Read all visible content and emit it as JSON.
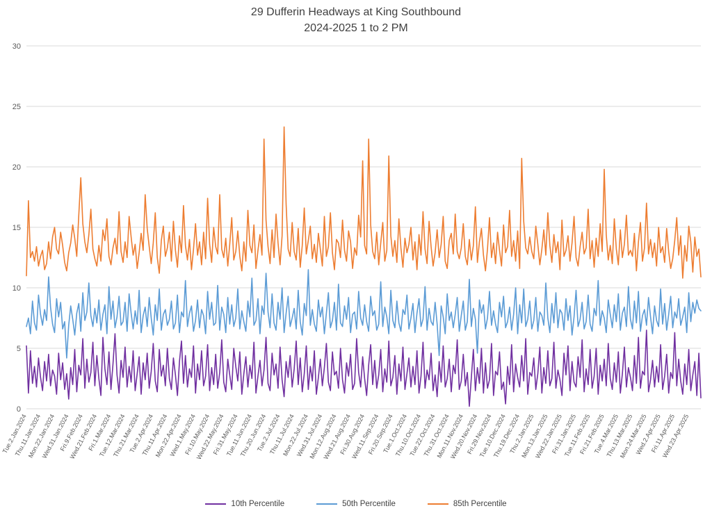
{
  "title": {
    "line1": "29 Dufferin Headways at King Southbound",
    "line2": "2024-2025 1 to 2 PM"
  },
  "chart_data": {
    "type": "line",
    "title": "29 Dufferin Headways at King Southbound 2024-2025 1 to 2 PM",
    "xlabel": "",
    "ylabel": "",
    "ylim": [
      0,
      30
    ],
    "y_ticks": [
      0,
      5,
      10,
      15,
      20,
      25,
      30
    ],
    "grid": true,
    "legend_position": "bottom",
    "x_tick_every": 7,
    "x_tick_labels": [
      "Tue.2.Jan.2024",
      "Thu.11.Jan.2024",
      "Mon.22.Jan.2024",
      "Wed.31.Jan.2024",
      "Fri.9.Feb.2024",
      "Wed.21.Feb.2024",
      "Fri.1.Mar.2024",
      "Tue.12.Mar.2024",
      "Thu.21.Mar.2024",
      "Tue.2.Apr.2024",
      "Thu.11.Apr.2024",
      "Mon.22.Apr.2024",
      "Wed.1.May.2024",
      "Fri.10.May.2024",
      "Wed.22.May.2024",
      "Fri.31.May.2024",
      "Tue.11.Jun.2024",
      "Thu.20.Jun.2024",
      "Tue.2.Jul.2024",
      "Thu.11.Jul.2024",
      "Mon.22.Jul.2024",
      "Wed.31.Jul.2024",
      "Mon.12.Aug.2024",
      "Wed.21.Aug.2024",
      "Fri.30.Aug.2024",
      "Wed.11.Sep.2024",
      "Fri.20.Sep.2024",
      "Tue.1.Oct.2024",
      "Thu.10.Oct.2024",
      "Tue.22.Oct.2024",
      "Thu.31.Oct.2024",
      "Mon.11.Nov.2024",
      "Wed.20.Nov.2024",
      "Fri.29.Nov.2024",
      "Tue.10.Dec.2024",
      "Thu.19.Dec.2024",
      "Thu.2.Jan.2025",
      "Mon.13.Jan.2025",
      "Wed.22.Jan.2025",
      "Fri.31.Jan.2025",
      "Tue.11.Feb.2025",
      "Fri.21.Feb.2025",
      "Tue.4.Mar.2025",
      "Thu.13.Mar.2025",
      "Mon.24.Mar.2025",
      "Wed.2.Apr.2025",
      "Fri.11.Apr.2025",
      "Wed.23.Apr.2025"
    ],
    "series": [
      {
        "name": "10th Percentile",
        "color": "#7030A0",
        "values": [
          5.2,
          1.3,
          4.8,
          2.1,
          3.5,
          1.8,
          4.2,
          2.6,
          1.5,
          3.9,
          2.3,
          4.5,
          1.9,
          3.2,
          2.7,
          1.2,
          4.6,
          2.4,
          3.8,
          1.6,
          2.9,
          0.8,
          3.4,
          2.0,
          4.9,
          1.4,
          3.6,
          2.8,
          5.8,
          1.7,
          4.1,
          2.2,
          3.0,
          5.5,
          1.9,
          4.4,
          2.5,
          1.1,
          5.9,
          3.3,
          2.0,
          4.7,
          1.6,
          3.7,
          6.2,
          2.8,
          1.3,
          4.0,
          2.6,
          5.1,
          1.8,
          3.5,
          2.2,
          4.8,
          1.5,
          2.9,
          4.3,
          1.2,
          3.8,
          2.4,
          4.6,
          1.7,
          3.1,
          5.4,
          2.3,
          1.4,
          4.9,
          2.7,
          3.6,
          1.9,
          5.0,
          2.5,
          1.6,
          4.2,
          2.8,
          1.1,
          3.9,
          5.6,
          2.1,
          4.4,
          1.8,
          3.3,
          2.6,
          5.2,
          1.3,
          3.7,
          2.4,
          4.8,
          1.9,
          2.7,
          5.3,
          1.5,
          3.4,
          2.0,
          4.5,
          1.7,
          3.0,
          5.7,
          2.2,
          1.4,
          4.1,
          2.8,
          1.6,
          5.0,
          3.5,
          2.3,
          4.7,
          1.2,
          2.9,
          4.3,
          1.8,
          3.6,
          2.5,
          5.5,
          1.3,
          2.7,
          4.0,
          1.9,
          3.2,
          5.9,
          2.1,
          1.5,
          4.6,
          2.8,
          3.7,
          1.7,
          5.1,
          2.4,
          1.0,
          3.9,
          2.6,
          4.4,
          1.8,
          3.3,
          5.6,
          2.0,
          4.2,
          1.4,
          2.9,
          5.2,
          1.6,
          3.5,
          2.3,
          4.8,
          1.2,
          2.6,
          4.1,
          1.9,
          3.4,
          5.4,
          2.2,
          1.5,
          4.7,
          2.8,
          3.1,
          1.7,
          5.0,
          2.4,
          1.3,
          3.8,
          2.7,
          4.5,
          1.6,
          2.1,
          5.8,
          3.0,
          1.8,
          4.3,
          2.5,
          1.1,
          3.6,
          5.3,
          2.0,
          4.0,
          1.7,
          2.8,
          4.9,
          1.4,
          3.3,
          2.2,
          5.6,
          1.9,
          2.6,
          4.4,
          1.2,
          3.7,
          2.3,
          5.1,
          1.6,
          2.9,
          4.2,
          1.8,
          3.5,
          2.0,
          4.8,
          1.3,
          2.7,
          5.5,
          1.7,
          3.2,
          2.4,
          4.6,
          1.5,
          2.8,
          1.0,
          3.9,
          2.2,
          5.2,
          1.8,
          2.5,
          4.1,
          1.4,
          3.6,
          2.9,
          5.7,
          1.6,
          2.3,
          4.5,
          1.9,
          3.0,
          0.2,
          2.6,
          4.9,
          1.5,
          3.4,
          2.1,
          5.0,
          1.3,
          3.8,
          1.7,
          2.4,
          5.4,
          1.1,
          3.1,
          2.8,
          4.7,
          1.6,
          2.2,
          0.4,
          3.5,
          2.0,
          5.3,
          1.4,
          3.7,
          2.6,
          1.8,
          4.4,
          2.3,
          5.8,
          1.2,
          3.0,
          2.7,
          4.2,
          1.6,
          2.9,
          5.1,
          1.3,
          3.4,
          2.1,
          4.8,
          1.9,
          2.5,
          5.5,
          1.7,
          3.2,
          2.4,
          1.1,
          4.6,
          2.8,
          5.2,
          1.5,
          3.9,
          2.2,
          1.8,
          4.3,
          2.6,
          5.7,
          1.4,
          3.3,
          2.0,
          4.9,
          1.7,
          2.7,
          5.0,
          1.2,
          3.6,
          2.3,
          4.1,
          1.9,
          5.4,
          2.5,
          1.6,
          3.8,
          2.2,
          4.7,
          1.3,
          2.9,
          5.1,
          1.8,
          3.4,
          2.6,
          1.5,
          4.4,
          2.1,
          5.9,
          1.7,
          3.1,
          2.8,
          6.5,
          1.4,
          2.4,
          4.0,
          1.8,
          3.5,
          2.2,
          5.3,
          1.6,
          2.7,
          4.5,
          1.3,
          3.0,
          2.5,
          6.3,
          1.9,
          4.1,
          2.3,
          1.2,
          3.7,
          2.0,
          4.9,
          1.5,
          2.8,
          3.9,
          1.1,
          4.6,
          0.9
        ]
      },
      {
        "name": "50th Percentile",
        "color": "#5B9BD5",
        "values": [
          6.8,
          7.5,
          6.2,
          8.9,
          7.1,
          6.5,
          9.4,
          7.8,
          6.9,
          8.2,
          7.3,
          10.9,
          8.4,
          7.0,
          6.3,
          9.1,
          7.6,
          8.8,
          6.6,
          7.2,
          4.2,
          6.9,
          8.5,
          7.4,
          6.1,
          7.9,
          8.7,
          6.4,
          9.6,
          7.3,
          8.0,
          10.4,
          7.7,
          6.8,
          8.3,
          7.1,
          9.0,
          6.5,
          7.8,
          8.6,
          6.2,
          10.1,
          7.4,
          8.9,
          6.7,
          7.6,
          9.3,
          6.9,
          7.2,
          8.8,
          6.4,
          9.5,
          7.9,
          6.6,
          8.1,
          7.0,
          9.8,
          6.3,
          7.7,
          8.4,
          6.8,
          9.2,
          7.5,
          6.1,
          8.6,
          7.3,
          9.9,
          6.5,
          7.8,
          8.2,
          6.9,
          7.4,
          8.9,
          6.6,
          7.1,
          9.4,
          6.3,
          8.0,
          7.6,
          10.6,
          6.8,
          7.9,
          8.5,
          6.4,
          7.3,
          9.0,
          6.7,
          8.2,
          7.7,
          6.2,
          9.7,
          7.4,
          8.8,
          6.9,
          7.1,
          10.2,
          6.5,
          8.4,
          7.8,
          6.3,
          9.2,
          7.0,
          8.6,
          6.8,
          7.5,
          9.9,
          6.6,
          8.1,
          7.2,
          6.4,
          8.9,
          7.6,
          10.8,
          6.9,
          7.3,
          9.1,
          6.2,
          8.5,
          7.8,
          11.2,
          8.0,
          6.7,
          9.5,
          7.1,
          6.5,
          8.8,
          7.4,
          10.0,
          6.3,
          7.9,
          9.3,
          6.8,
          7.5,
          8.3,
          6.6,
          9.8,
          7.2,
          6.1,
          8.7,
          7.7,
          11.5,
          6.9,
          8.2,
          7.0,
          6.4,
          9.0,
          7.6,
          8.4,
          6.2,
          7.9,
          9.6,
          6.7,
          7.3,
          8.8,
          6.5,
          10.3,
          7.1,
          6.8,
          8.5,
          7.4,
          9.2,
          6.3,
          7.8,
          8.0,
          6.6,
          9.7,
          7.5,
          6.9,
          8.6,
          7.2,
          6.4,
          9.3,
          7.7,
          8.1,
          6.5,
          7.0,
          10.5,
          6.8,
          8.4,
          7.6,
          6.2,
          9.8,
          7.3,
          6.7,
          8.9,
          7.1,
          6.4,
          8.2,
          7.8,
          9.4,
          6.6,
          7.5,
          8.7,
          6.3,
          7.9,
          9.1,
          6.8,
          7.4,
          10.1,
          6.5,
          8.3,
          7.2,
          6.9,
          8.8,
          7.0,
          4.4,
          8.5,
          7.6,
          6.2,
          9.5,
          7.3,
          8.0,
          6.7,
          7.8,
          9.2,
          6.4,
          7.7,
          8.9,
          6.5,
          7.2,
          10.7,
          6.8,
          8.3,
          7.4,
          4.6,
          9.0,
          7.9,
          8.6,
          6.6,
          7.5,
          9.7,
          6.9,
          8.1,
          7.0,
          6.3,
          8.8,
          7.6,
          9.3,
          6.7,
          7.2,
          8.4,
          6.5,
          7.8,
          10.0,
          6.2,
          8.6,
          7.1,
          9.9,
          6.8,
          7.4,
          8.9,
          6.6,
          7.3,
          9.2,
          6.4,
          8.0,
          7.7,
          6.9,
          10.4,
          7.5,
          6.3,
          8.7,
          7.1,
          9.6,
          6.7,
          8.2,
          7.9,
          6.5,
          9.1,
          7.3,
          8.5,
          6.1,
          7.6,
          9.8,
          6.8,
          7.4,
          8.8,
          6.6,
          7.2,
          9.4,
          7.0,
          6.4,
          8.3,
          7.7,
          10.6,
          6.9,
          8.1,
          7.5,
          6.3,
          9.0,
          7.8,
          6.7,
          8.6,
          7.2,
          9.5,
          6.5,
          7.9,
          8.4,
          6.8,
          10.1,
          7.4,
          6.6,
          8.9,
          7.1,
          9.7,
          6.4,
          7.7,
          8.2,
          6.9,
          9.2,
          7.6,
          6.2,
          8.5,
          7.3,
          6.8,
          9.9,
          7.0,
          8.7,
          6.5,
          7.8,
          9.3,
          6.7,
          8.0,
          7.5,
          9.1,
          6.9,
          7.6,
          8.4,
          6.3,
          9.6,
          7.2,
          8.8,
          7.9,
          9.0,
          8.3,
          8.1
        ]
      },
      {
        "name": "85th Percentile",
        "color": "#ED7D31",
        "values": [
          11.0,
          17.2,
          12.5,
          13.0,
          12.2,
          13.4,
          11.8,
          12.6,
          13.1,
          11.5,
          12.0,
          13.8,
          12.4,
          14.2,
          15.0,
          13.2,
          12.8,
          14.6,
          13.5,
          12.1,
          11.4,
          12.9,
          13.7,
          15.2,
          14.1,
          12.6,
          16.0,
          19.1,
          15.3,
          13.8,
          12.9,
          14.4,
          16.5,
          13.2,
          12.4,
          11.8,
          13.5,
          12.2,
          14.8,
          13.9,
          15.7,
          12.6,
          11.9,
          13.3,
          14.1,
          12.8,
          16.3,
          13.0,
          12.1,
          13.8,
          12.5,
          15.9,
          14.2,
          12.7,
          13.6,
          11.6,
          12.9,
          14.5,
          13.1,
          17.7,
          14.9,
          13.4,
          12.0,
          13.7,
          16.2,
          12.5,
          11.2,
          13.9,
          15.1,
          12.6,
          13.3,
          14.6,
          12.2,
          15.5,
          13.1,
          11.7,
          14.3,
          12.9,
          16.8,
          13.5,
          12.3,
          14.0,
          11.5,
          13.2,
          15.3,
          12.7,
          13.8,
          11.9,
          14.6,
          12.4,
          17.4,
          13.6,
          12.1,
          15.0,
          13.4,
          12.8,
          17.7,
          13.2,
          12.5,
          14.1,
          11.8,
          13.6,
          15.8,
          12.3,
          13.0,
          14.7,
          12.6,
          11.4,
          13.8,
          12.2,
          16.4,
          13.5,
          12.9,
          15.2,
          11.6,
          13.1,
          14.4,
          12.7,
          22.3,
          15.6,
          13.4,
          12.0,
          14.8,
          12.5,
          16.1,
          13.7,
          11.9,
          14.3,
          23.3,
          16.9,
          13.2,
          12.6,
          15.4,
          13.0,
          12.3,
          14.9,
          11.7,
          13.5,
          16.6,
          12.8,
          13.9,
          15.1,
          12.4,
          13.6,
          12.1,
          14.5,
          13.2,
          11.8,
          15.9,
          12.6,
          13.4,
          16.2,
          12.9,
          11.5,
          14.0,
          13.7,
          12.5,
          15.6,
          13.1,
          12.2,
          14.7,
          13.8,
          11.6,
          13.3,
          12.7,
          16.0,
          14.2,
          20.5,
          13.5,
          12.8,
          22.3,
          15.2,
          13.0,
          12.4,
          14.6,
          11.9,
          13.7,
          15.4,
          12.2,
          13.1,
          20.9,
          14.3,
          12.6,
          13.9,
          12.1,
          15.7,
          13.3,
          11.7,
          14.1,
          12.9,
          13.6,
          15.0,
          12.3,
          13.8,
          11.5,
          14.4,
          12.7,
          16.3,
          13.2,
          12.0,
          15.5,
          13.4,
          11.8,
          12.9,
          14.8,
          12.5,
          13.6,
          15.9,
          12.2,
          11.6,
          13.9,
          14.5,
          12.8,
          16.1,
          13.0,
          12.4,
          13.3,
          15.3,
          12.6,
          11.9,
          14.0,
          12.3,
          13.5,
          16.7,
          12.1,
          13.8,
          14.9,
          12.7,
          11.4,
          13.2,
          15.8,
          12.5,
          13.7,
          12.0,
          14.6,
          13.1,
          11.8,
          15.2,
          12.9,
          13.4,
          16.4,
          12.6,
          13.9,
          12.2,
          14.7,
          11.6,
          20.7,
          15.5,
          13.3,
          12.8,
          14.2,
          13.0,
          12.4,
          15.1,
          13.6,
          11.9,
          13.2,
          14.8,
          12.7,
          16.2,
          13.5,
          12.1,
          14.4,
          12.9,
          13.8,
          11.5,
          15.6,
          12.6,
          13.1,
          14.3,
          12.2,
          13.7,
          15.9,
          12.5,
          11.8,
          13.4,
          14.6,
          12.8,
          13.3,
          16.5,
          12.4,
          13.9,
          11.7,
          14.1,
          12.6,
          15.3,
          13.0,
          19.8,
          14.4,
          12.3,
          13.5,
          12.0,
          15.7,
          13.2,
          11.9,
          14.8,
          12.5,
          13.6,
          16.0,
          12.7,
          13.1,
          12.6,
          14.5,
          11.4,
          13.8,
          15.4,
          12.2,
          13.3,
          17.0,
          12.8,
          14.0,
          12.5,
          13.7,
          11.8,
          15.0,
          12.9,
          13.4,
          12.1,
          14.9,
          13.0,
          11.6,
          12.4,
          13.9,
          15.8,
          12.7,
          14.3,
          10.8,
          13.5,
          12.2,
          15.1,
          13.8,
          11.3,
          14.2,
          12.6,
          13.2,
          10.9
        ]
      }
    ]
  },
  "legend": {
    "items": [
      "10th Percentile",
      "50th Percentile",
      "85th Percentile"
    ]
  },
  "axis": {
    "grid_color": "#d9d9d9",
    "tick_label_color": "#595959"
  }
}
